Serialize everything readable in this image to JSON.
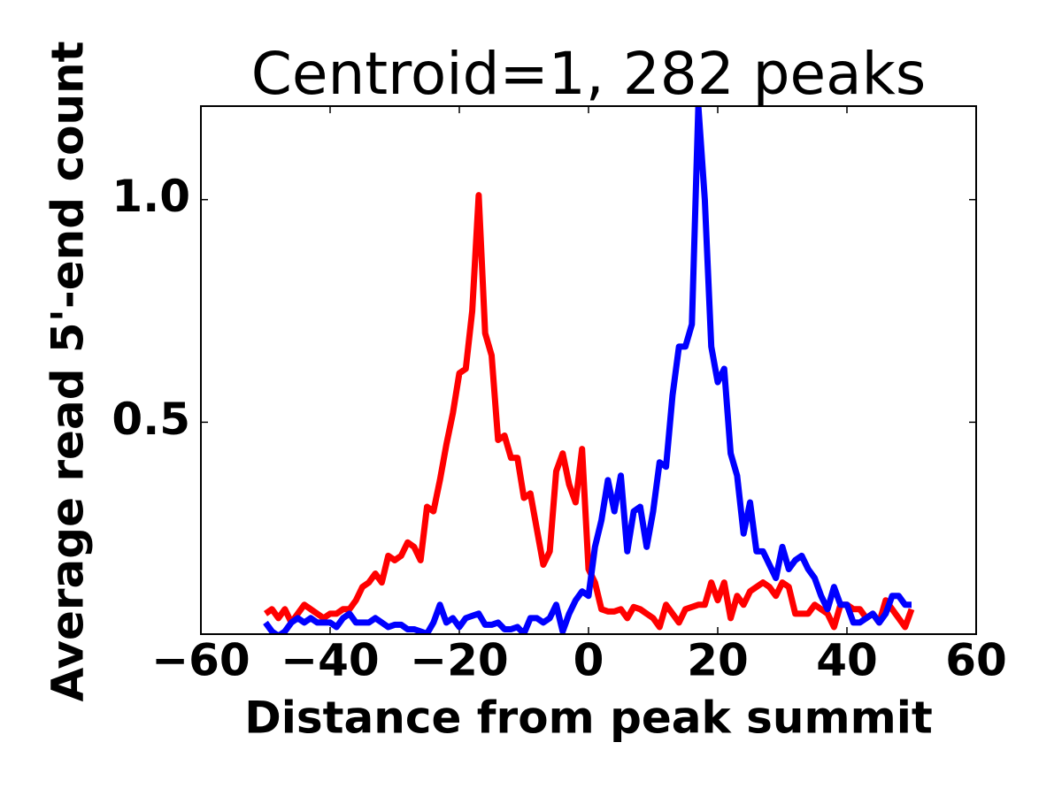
{
  "chart_data": {
    "type": "line",
    "title": "Centroid=1, 282 peaks",
    "xlabel": "Distance from peak summit",
    "ylabel": "Average read 5'-end count",
    "x": [
      -50,
      -49,
      -48,
      -47,
      -46,
      -45,
      -44,
      -43,
      -42,
      -41,
      -40,
      -39,
      -38,
      -37,
      -36,
      -35,
      -34,
      -33,
      -32,
      -31,
      -30,
      -29,
      -28,
      -27,
      -26,
      -25,
      -24,
      -23,
      -22,
      -21,
      -20,
      -19,
      -18,
      -17,
      -16,
      -15,
      -14,
      -13,
      -12,
      -11,
      -10,
      -9,
      -8,
      -7,
      -6,
      -5,
      -4,
      -3,
      -2,
      -1,
      0,
      1,
      2,
      3,
      4,
      5,
      6,
      7,
      8,
      9,
      10,
      11,
      12,
      13,
      14,
      15,
      16,
      17,
      18,
      19,
      20,
      21,
      22,
      23,
      24,
      25,
      26,
      27,
      28,
      29,
      30,
      31,
      32,
      33,
      34,
      35,
      36,
      37,
      38,
      39,
      40,
      41,
      42,
      43,
      44,
      45,
      46,
      47,
      48,
      49,
      50
    ],
    "series": [
      {
        "color": "#ff0000",
        "values": [
          0.07,
          0.08,
          0.06,
          0.08,
          0.05,
          0.07,
          0.09,
          0.08,
          0.07,
          0.06,
          0.07,
          0.07,
          0.08,
          0.08,
          0.1,
          0.13,
          0.14,
          0.16,
          0.14,
          0.2,
          0.19,
          0.2,
          0.23,
          0.22,
          0.19,
          0.31,
          0.3,
          0.37,
          0.45,
          0.52,
          0.61,
          0.62,
          0.75,
          1.01,
          0.7,
          0.65,
          0.46,
          0.47,
          0.42,
          0.42,
          0.33,
          0.34,
          0.26,
          0.18,
          0.21,
          0.39,
          0.43,
          0.36,
          0.32,
          0.44,
          0.17,
          0.14,
          0.08,
          0.075,
          0.075,
          0.08,
          0.06,
          0.085,
          0.08,
          0.07,
          0.06,
          0.04,
          0.09,
          0.07,
          0.05,
          0.08,
          0.085,
          0.09,
          0.09,
          0.14,
          0.1,
          0.14,
          0.06,
          0.11,
          0.09,
          0.12,
          0.13,
          0.14,
          0.13,
          0.11,
          0.14,
          0.13,
          0.07,
          0.07,
          0.07,
          0.09,
          0.08,
          0.07,
          0.04,
          0.09,
          0.09,
          0.08,
          0.08,
          0.06,
          0.07,
          0.05,
          0.1,
          0.08,
          0.06,
          0.04,
          0.08
        ]
      },
      {
        "color": "#0000ff",
        "values": [
          0.05,
          0.03,
          0.02,
          0.03,
          0.05,
          0.06,
          0.05,
          0.06,
          0.05,
          0.05,
          0.05,
          0.04,
          0.06,
          0.07,
          0.05,
          0.05,
          0.05,
          0.06,
          0.05,
          0.04,
          0.045,
          0.045,
          0.035,
          0.035,
          0.03,
          0.025,
          0.05,
          0.09,
          0.05,
          0.06,
          0.04,
          0.06,
          0.065,
          0.07,
          0.045,
          0.045,
          0.05,
          0.035,
          0.035,
          0.04,
          0.025,
          0.06,
          0.06,
          0.05,
          0.06,
          0.09,
          0.03,
          0.07,
          0.1,
          0.12,
          0.11,
          0.22,
          0.28,
          0.37,
          0.3,
          0.38,
          0.21,
          0.3,
          0.31,
          0.22,
          0.3,
          0.41,
          0.4,
          0.56,
          0.67,
          0.67,
          0.72,
          1.21,
          1.0,
          0.67,
          0.59,
          0.62,
          0.43,
          0.38,
          0.25,
          0.32,
          0.21,
          0.21,
          0.18,
          0.15,
          0.22,
          0.17,
          0.19,
          0.2,
          0.17,
          0.15,
          0.11,
          0.08,
          0.13,
          0.09,
          0.09,
          0.05,
          0.05,
          0.06,
          0.07,
          0.05,
          0.07,
          0.11,
          0.11,
          0.09,
          0.09
        ]
      }
    ],
    "xlim": [
      -60,
      60
    ],
    "xticks": [
      {
        "value": -60,
        "label": "−60"
      },
      {
        "value": -40,
        "label": "−40"
      },
      {
        "value": -20,
        "label": "−20"
      },
      0,
      20,
      40,
      60
    ],
    "ylim": [
      0.024,
      1.21
    ],
    "yticks": [
      0.5,
      {
        "value": 1,
        "label": "1.0"
      }
    ]
  }
}
